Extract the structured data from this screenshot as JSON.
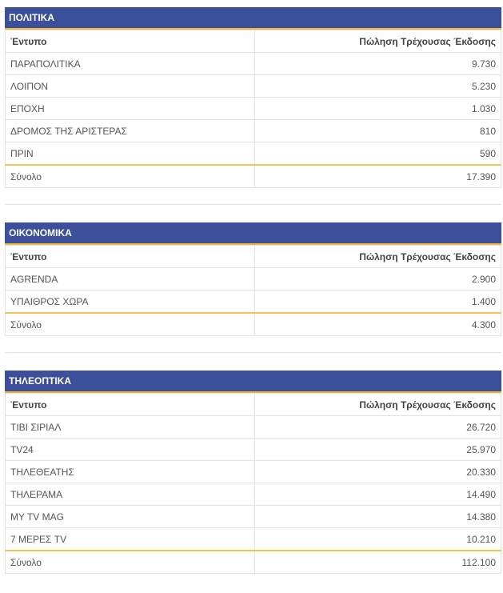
{
  "tables": [
    {
      "title": "ΠΟΛΙΤΙΚΑ",
      "columns": [
        "Έντυπο",
        "Πώληση Τρέχουσας Έκδοσης"
      ],
      "rows": [
        [
          "ΠΑΡΑΠΟΛΙΤΙΚΑ",
          "9.730"
        ],
        [
          "ΛΟΙΠΟΝ",
          "5.230"
        ],
        [
          "ΕΠΟΧΗ",
          "1.030"
        ],
        [
          "ΔΡΟΜΟΣ ΤΗΣ ΑΡΙΣΤΕΡΑΣ",
          "810"
        ],
        [
          "ΠΡΙΝ",
          "590"
        ]
      ],
      "total": [
        "Σύνολο",
        "17.390"
      ]
    },
    {
      "title": "ΟΙΚΟΝΟΜΙΚΑ",
      "columns": [
        "Έντυπο",
        "Πώληση Τρέχουσας Έκδοσης"
      ],
      "rows": [
        [
          "AGRENDA",
          "2.900"
        ],
        [
          "ΥΠΑΙΘΡΟΣ ΧΩΡΑ",
          "1.400"
        ]
      ],
      "total": [
        "Σύνολο",
        "4.300"
      ]
    },
    {
      "title": "ΤΗΛΕΟΠΤΙΚΑ",
      "columns": [
        "Έντυπο",
        "Πώληση Τρέχουσας Έκδοσης"
      ],
      "rows": [
        [
          "ΤΙΒΙ ΣΙΡΙΑΛ",
          "26.720"
        ],
        [
          "TV24",
          "25.970"
        ],
        [
          "ΤΗΛΕΘΕΑΤΗΣ",
          "20.330"
        ],
        [
          "ΤΗΛΕΡΑΜΑ",
          "14.490"
        ],
        [
          "MY TV MAG",
          "14.380"
        ],
        [
          "7 ΜΕΡΕΣ TV",
          "10.210"
        ]
      ],
      "total": [
        "Σύνολο",
        "112.100"
      ]
    }
  ]
}
